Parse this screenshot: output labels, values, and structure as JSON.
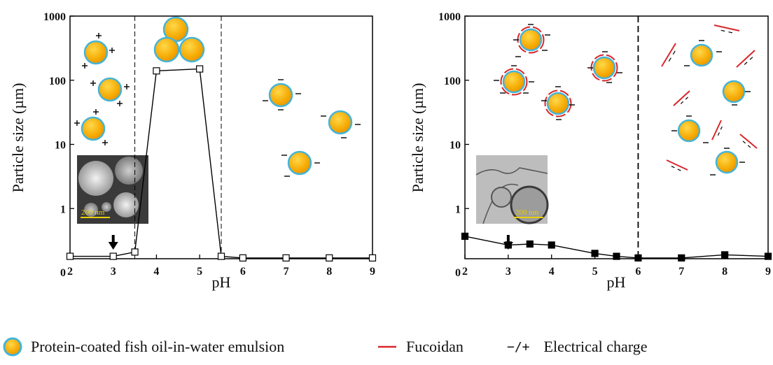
{
  "chart_data": [
    {
      "type": "line",
      "panel": "left",
      "x": [
        2,
        3,
        3.5,
        4,
        5,
        5.5,
        6,
        7,
        8,
        9
      ],
      "series": [
        {
          "values": [
            0.18,
            0.18,
            0.21,
            140,
            150,
            0.18,
            0.17,
            0.17,
            0.17,
            0.17
          ],
          "marker": "open-square"
        }
      ],
      "xlabel": "pH",
      "ylabel": "Particle size (µm)",
      "xlim": [
        2,
        9
      ],
      "yscale": "log",
      "ylim": [
        0,
        1000
      ],
      "xticks": [
        "2",
        "3",
        "4",
        "5",
        "6",
        "7",
        "8",
        "9"
      ],
      "yticks": [
        "0",
        "1",
        "10",
        "100",
        "1000"
      ],
      "vlines": [
        3.5,
        5.5
      ],
      "inset_scalebar": "200 nm",
      "arrow_at_x": 3
    },
    {
      "type": "line",
      "panel": "right",
      "x": [
        2,
        3,
        3.5,
        4,
        5,
        5.5,
        6,
        7,
        8,
        9
      ],
      "series": [
        {
          "values": [
            0.37,
            0.27,
            0.28,
            0.27,
            0.2,
            0.18,
            0.17,
            0.17,
            0.19,
            0.18
          ],
          "marker": "filled-square"
        }
      ],
      "xlabel": "pH",
      "ylabel": "Particle size (µm)",
      "xlim": [
        2,
        9
      ],
      "yscale": "log",
      "ylim": [
        0,
        1000
      ],
      "xticks": [
        "2",
        "3",
        "4",
        "5",
        "6",
        "7",
        "8",
        "9"
      ],
      "yticks": [
        "0",
        "1",
        "10",
        "100",
        "1000"
      ],
      "vlines": [
        6
      ],
      "inset_scalebar": "200 nm",
      "arrow_at_x": 3
    }
  ],
  "legend": {
    "emulsion": "Protein-coated fish oil-in-water emulsion",
    "fucoidan": "Fucoidan",
    "charge_symbol": "−/+",
    "charge": "Electrical charge"
  },
  "colors": {
    "droplet_fill": "#f5a800",
    "droplet_ring": "#45b4d8",
    "fucoidan": "#d8262b",
    "line": "#000000"
  },
  "icons": [
    "emulsion-droplet-icon",
    "fucoidan-strand-icon",
    "charge-symbol",
    "micrograph-inset"
  ]
}
